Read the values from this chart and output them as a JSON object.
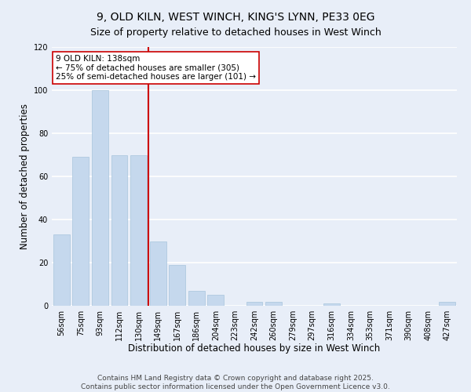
{
  "title_line1": "9, OLD KILN, WEST WINCH, KING'S LYNN, PE33 0EG",
  "title_line2": "Size of property relative to detached houses in West Winch",
  "xlabel": "Distribution of detached houses by size in West Winch",
  "ylabel": "Number of detached properties",
  "bar_labels": [
    "56sqm",
    "75sqm",
    "93sqm",
    "112sqm",
    "130sqm",
    "149sqm",
    "167sqm",
    "186sqm",
    "204sqm",
    "223sqm",
    "242sqm",
    "260sqm",
    "279sqm",
    "297sqm",
    "316sqm",
    "334sqm",
    "353sqm",
    "371sqm",
    "390sqm",
    "408sqm",
    "427sqm"
  ],
  "bar_values": [
    33,
    69,
    100,
    70,
    70,
    30,
    19,
    7,
    5,
    0,
    2,
    2,
    0,
    0,
    1,
    0,
    0,
    0,
    0,
    0,
    2
  ],
  "bar_color": "#c5d8ed",
  "bar_edge_color": "#a8c4dc",
  "vline_color": "#cc0000",
  "annotation_title": "9 OLD KILN: 138sqm",
  "annotation_line1": "← 75% of detached houses are smaller (305)",
  "annotation_line2": "25% of semi-detached houses are larger (101) →",
  "annotation_box_color": "#ffffff",
  "annotation_box_edge": "#cc0000",
  "ylim": [
    0,
    120
  ],
  "yticks": [
    0,
    20,
    40,
    60,
    80,
    100,
    120
  ],
  "background_color": "#e8eef8",
  "grid_color": "#ffffff",
  "footer_line1": "Contains HM Land Registry data © Crown copyright and database right 2025.",
  "footer_line2": "Contains public sector information licensed under the Open Government Licence v3.0.",
  "title_fontsize": 10,
  "subtitle_fontsize": 9,
  "axis_label_fontsize": 8.5,
  "tick_fontsize": 7,
  "footer_fontsize": 6.5
}
